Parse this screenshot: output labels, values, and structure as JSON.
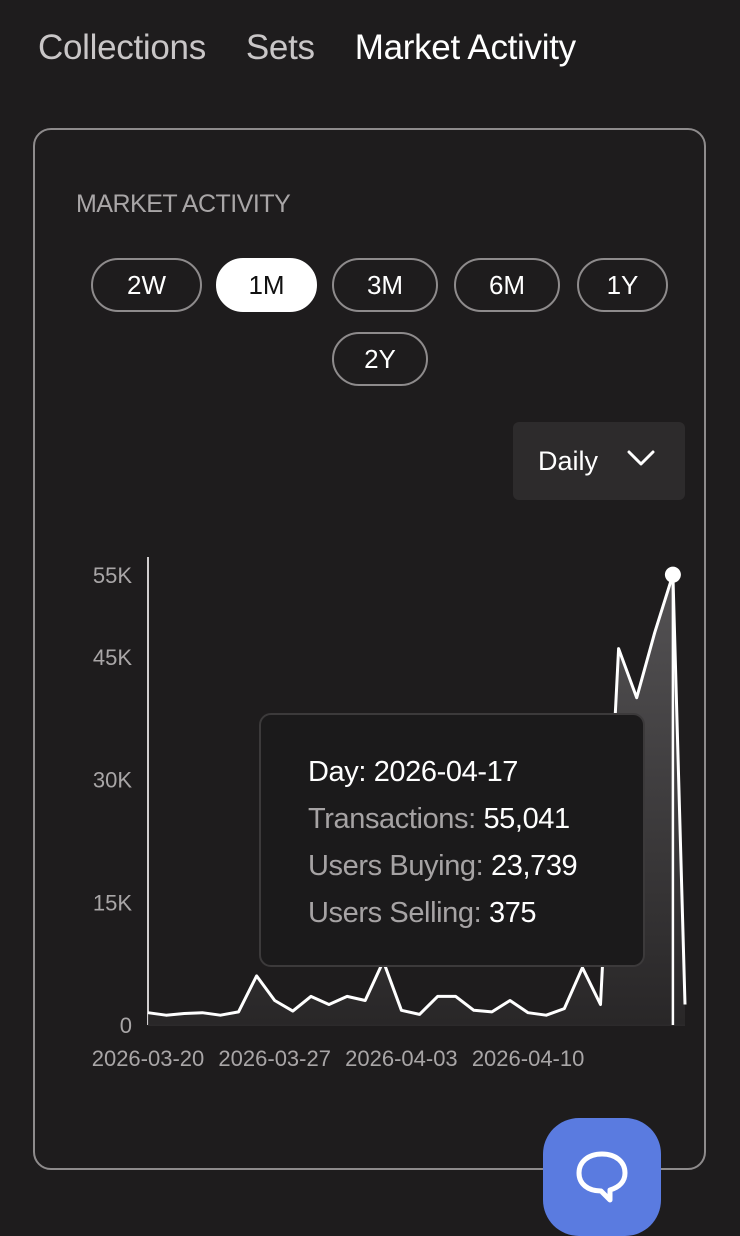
{
  "tabs": [
    {
      "label": "Collections",
      "active": false
    },
    {
      "label": "Sets",
      "active": false
    },
    {
      "label": "Market Activity",
      "active": true
    }
  ],
  "card": {
    "title": "MARKET ACTIVITY",
    "ranges": [
      "2W",
      "1M",
      "3M",
      "6M",
      "1Y",
      "2Y"
    ],
    "selected_range": "1M",
    "interval": {
      "selected": "Daily",
      "icon": "chevron-down-icon"
    }
  },
  "chart_data": {
    "type": "area",
    "y_ticks": [
      "55K",
      "45K",
      "30K",
      "15K",
      "0"
    ],
    "y_tick_values": [
      55000,
      45000,
      30000,
      15000,
      0
    ],
    "ylim": [
      0,
      55000
    ],
    "x_tick_labels": [
      "2026-03-20",
      "2026-03-27",
      "2026-04-03",
      "2026-04-10"
    ],
    "x_tick_days": [
      0,
      7,
      14,
      21
    ],
    "series": [
      {
        "values": [
          1500,
          1200,
          1400,
          1500,
          1200,
          1600,
          6000,
          3000,
          1700,
          3500,
          2500,
          3500,
          3000,
          7800,
          1800,
          1300,
          3500,
          3500,
          1800,
          1600,
          3000,
          1500,
          1200,
          2000,
          7000,
          2500,
          46000,
          40000,
          48000,
          55041,
          2500
        ]
      }
    ],
    "highlight": {
      "day_index": 29,
      "date": "2026-04-17"
    }
  },
  "tooltip": {
    "rows": [
      {
        "key": "Day: ",
        "value": "2026-04-17"
      },
      {
        "key": "Transactions: ",
        "value": "55,041"
      },
      {
        "key": "Users Buying: ",
        "value": "23,739"
      },
      {
        "key": "Users Selling: ",
        "value": "375"
      }
    ]
  },
  "chat": {
    "icon": "chat-bubble-icon"
  },
  "colors": {
    "background": "#1e1c1d",
    "accent": "#5a7be0",
    "line": "#ffffff",
    "border": "#8e8b8c"
  }
}
